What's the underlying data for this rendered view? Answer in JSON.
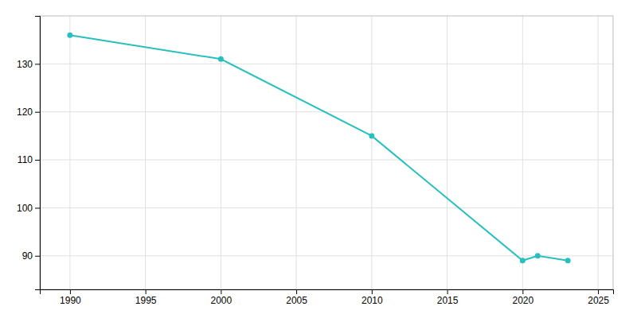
{
  "chart_data": {
    "type": "line",
    "x": [
      1990,
      2000,
      2010,
      2020,
      2021,
      2023
    ],
    "values": [
      136,
      131,
      115,
      89,
      90,
      89
    ],
    "color": "#2ABFBF",
    "marker": "circle",
    "xlim": [
      1988,
      2026
    ],
    "ylim": [
      83,
      140
    ],
    "xticks": [
      1990,
      1995,
      2000,
      2005,
      2010,
      2015,
      2020,
      2025
    ],
    "yticks": [
      90,
      100,
      110,
      120,
      130
    ],
    "grid": true
  }
}
